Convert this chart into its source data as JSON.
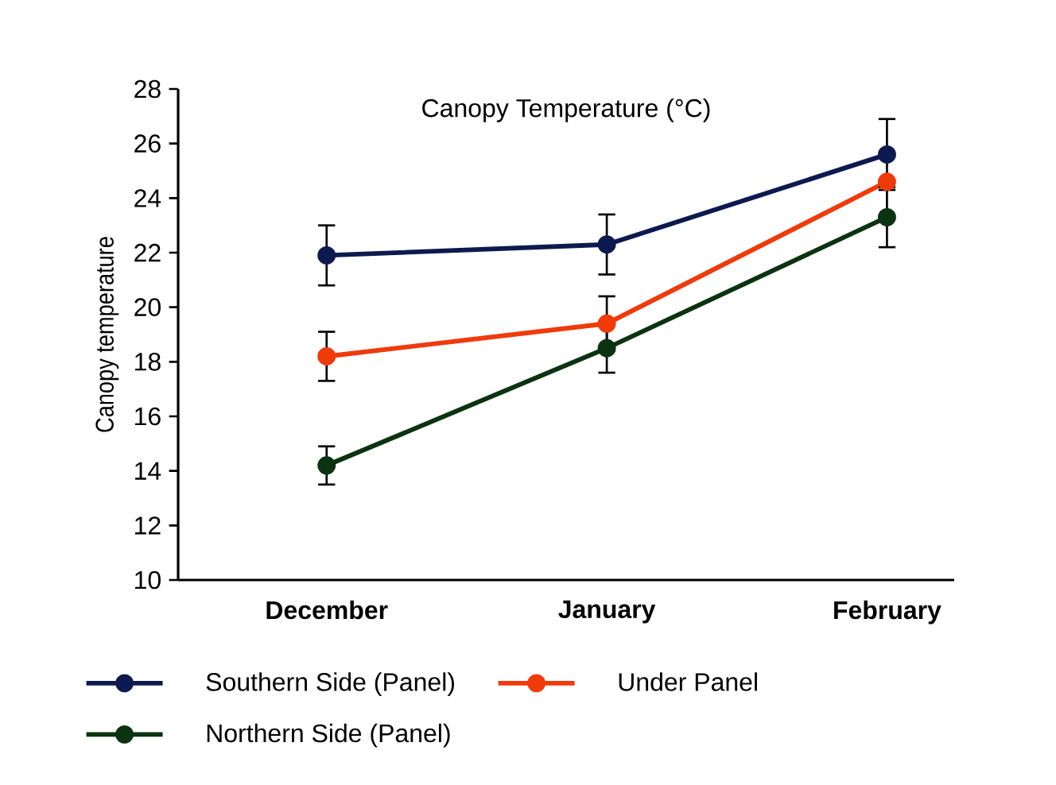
{
  "chart_data": {
    "type": "line",
    "title": "Canopy Temperature (°C)",
    "ylabel": "Canopy temperature",
    "categories": [
      "December",
      "January",
      "February"
    ],
    "series": [
      {
        "name": "Southern Side (Panel)",
        "color": "#0d1a4f",
        "values": [
          21.9,
          22.3,
          25.6
        ],
        "errors": [
          1.1,
          1.1,
          1.3
        ]
      },
      {
        "name": "Under Panel",
        "color": "#f03a0a",
        "values": [
          18.2,
          19.4,
          24.6
        ],
        "errors": [
          0.9,
          1.0,
          null
        ]
      },
      {
        "name": "Northern Side (Panel)",
        "color": "#0b3311",
        "values": [
          14.2,
          18.5,
          23.3
        ],
        "errors": [
          0.7,
          0.9,
          1.1
        ]
      }
    ],
    "ylim": [
      10,
      28
    ],
    "yticks": [
      10,
      12,
      14,
      16,
      18,
      20,
      22,
      24,
      26,
      28
    ],
    "marker": "circle",
    "line_style": "solid",
    "legend": "bottom",
    "grid": false
  }
}
